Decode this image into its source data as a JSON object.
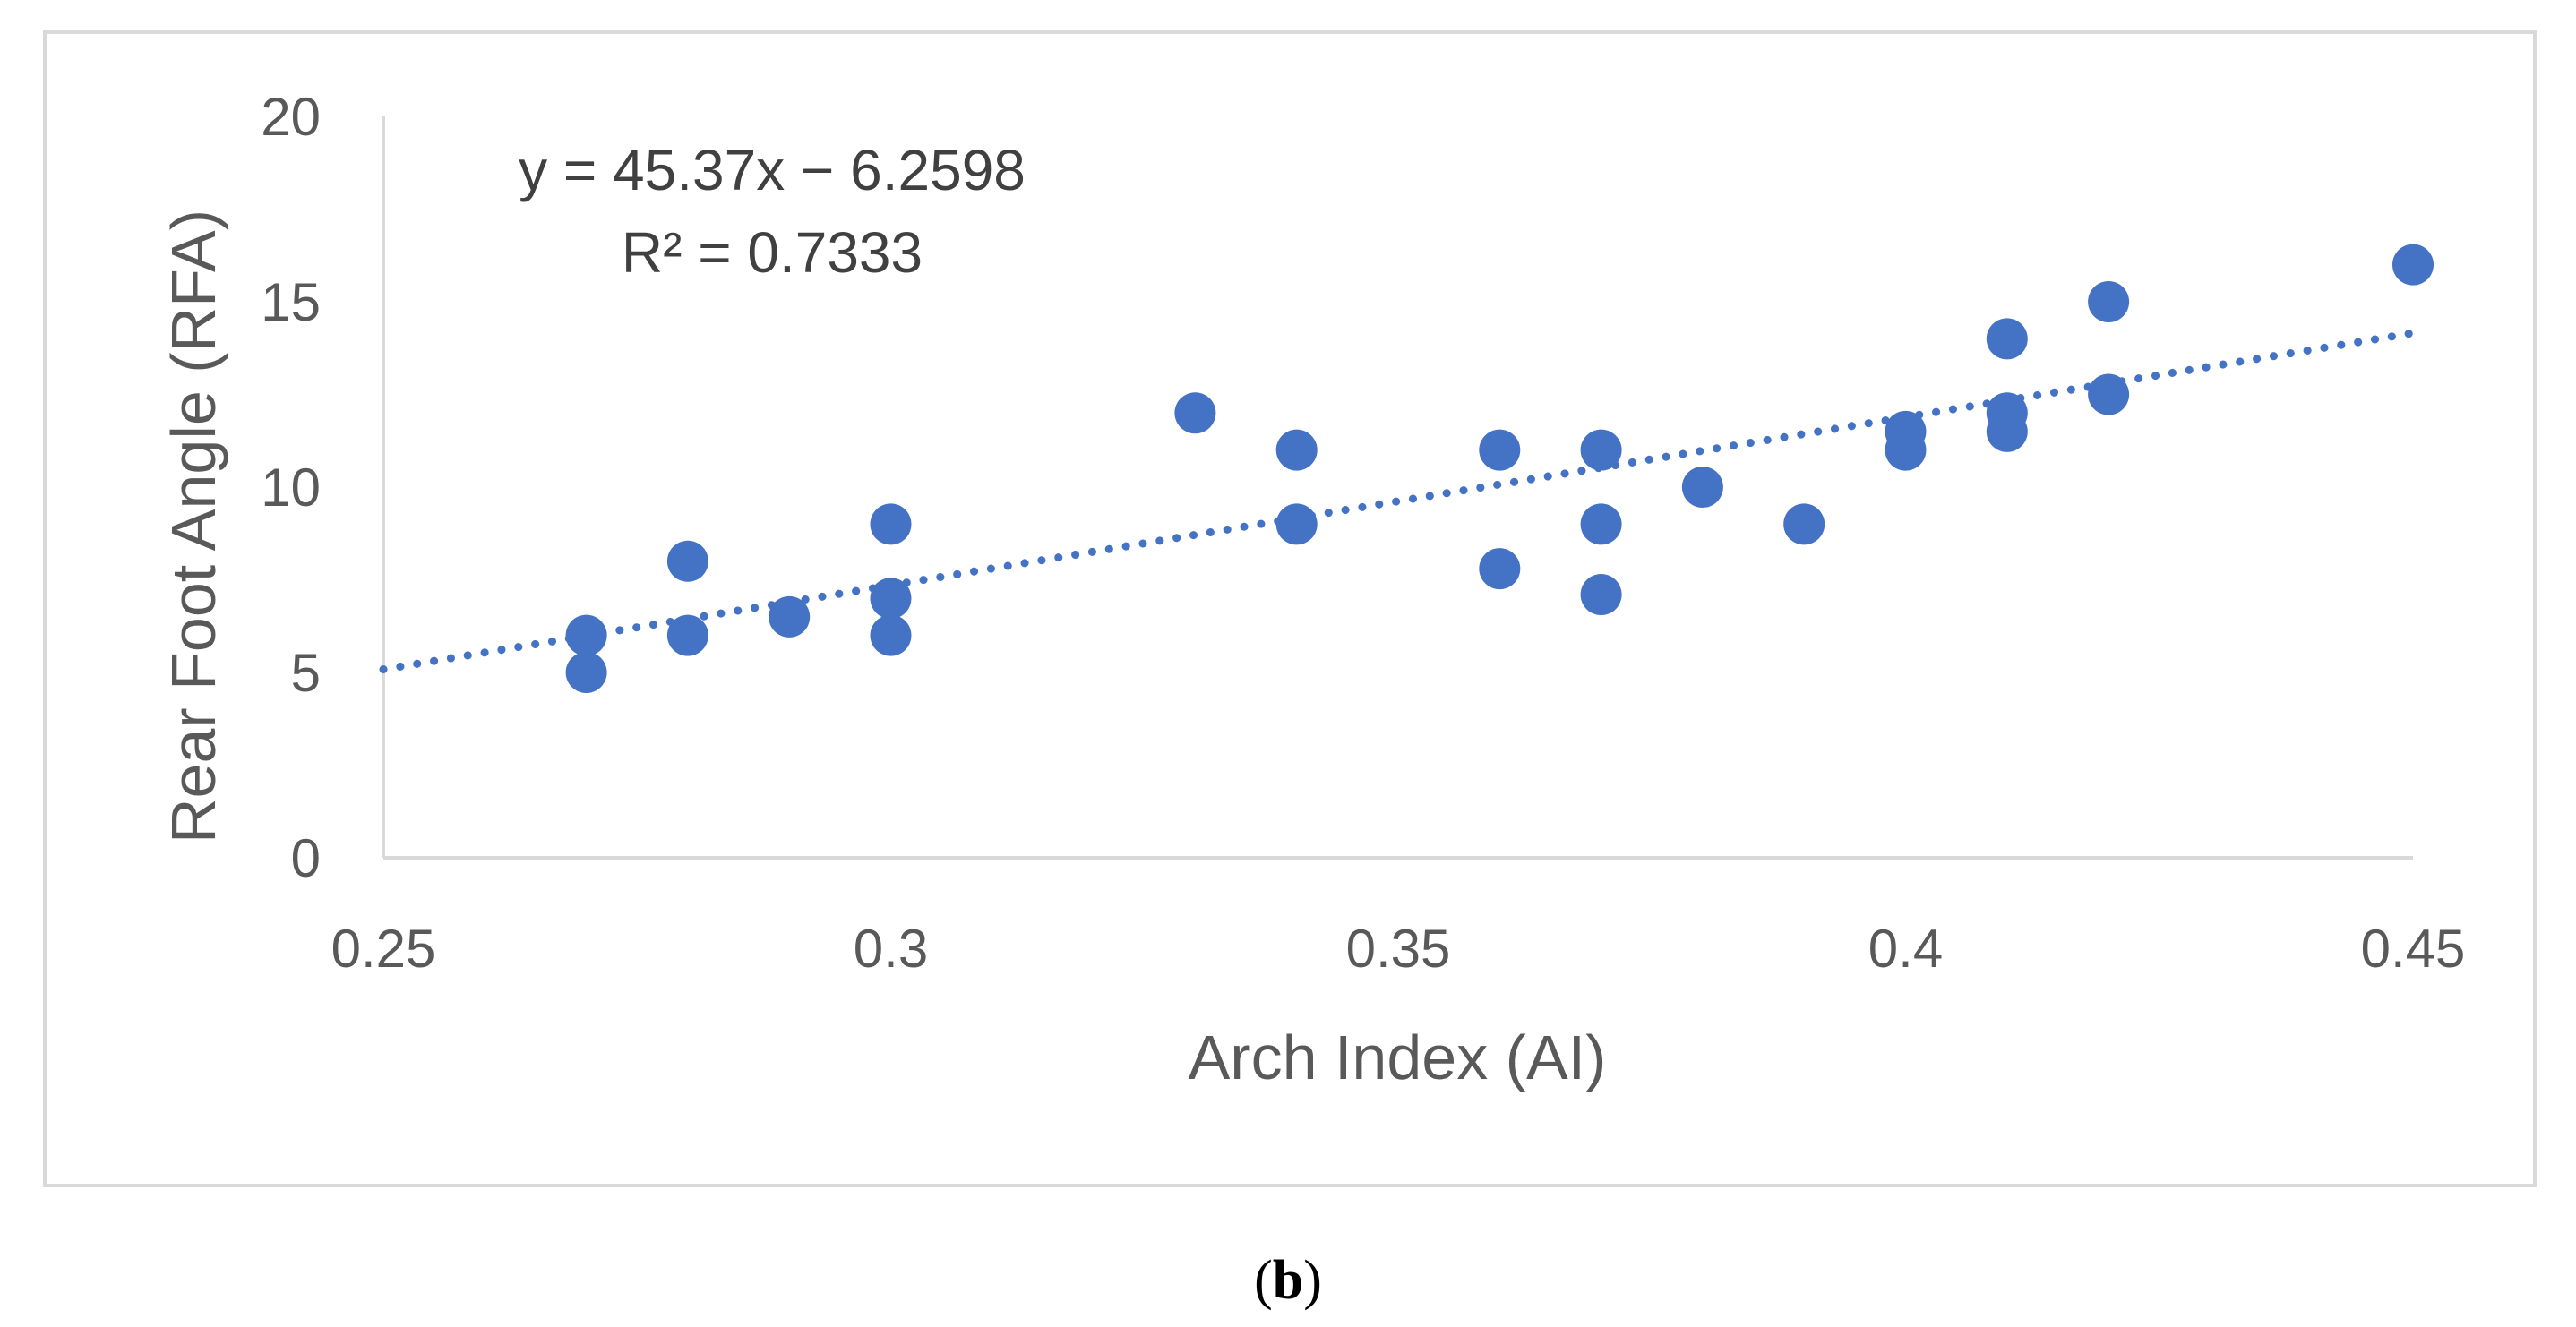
{
  "chart_data": {
    "type": "scatter",
    "xlabel": "Arch Index (AI)",
    "ylabel": "Rear Foot Angle (RFA)",
    "xlim": [
      0.25,
      0.45
    ],
    "ylim": [
      0,
      20
    ],
    "x_ticks": [
      "0.25",
      "0.3",
      "0.35",
      "0.4",
      "0.45"
    ],
    "x_tick_values": [
      0.25,
      0.3,
      0.35,
      0.4,
      0.45
    ],
    "y_ticks": [
      "0",
      "5",
      "10",
      "15",
      "20"
    ],
    "y_tick_values": [
      0,
      5,
      10,
      15,
      20
    ],
    "grid": false,
    "series": [
      {
        "name": "RFA",
        "color": "#4472c4",
        "points": [
          [
            0.27,
            6
          ],
          [
            0.27,
            5
          ],
          [
            0.28,
            8
          ],
          [
            0.28,
            6
          ],
          [
            0.29,
            6.5
          ],
          [
            0.3,
            9
          ],
          [
            0.3,
            7
          ],
          [
            0.3,
            6
          ],
          [
            0.33,
            12
          ],
          [
            0.34,
            11
          ],
          [
            0.34,
            9
          ],
          [
            0.36,
            11
          ],
          [
            0.36,
            7.8
          ],
          [
            0.37,
            11
          ],
          [
            0.37,
            9
          ],
          [
            0.37,
            7.1
          ],
          [
            0.38,
            10
          ],
          [
            0.39,
            9
          ],
          [
            0.4,
            11.5
          ],
          [
            0.4,
            11
          ],
          [
            0.41,
            14
          ],
          [
            0.41,
            12
          ],
          [
            0.41,
            11.5
          ],
          [
            0.42,
            15
          ],
          [
            0.42,
            12.5
          ],
          [
            0.45,
            16
          ]
        ]
      }
    ],
    "trendline": {
      "type": "linear",
      "style": "dotted",
      "color": "#4472c4",
      "slope": 45.37,
      "intercept": -6.2598,
      "x_range": [
        0.25,
        0.45
      ]
    },
    "annotations": {
      "equation": "y = 45.37x − 6.2598",
      "r_squared": "R² = 0.7333"
    }
  },
  "caption": {
    "open": "(",
    "letter": "b",
    "close": ")"
  }
}
